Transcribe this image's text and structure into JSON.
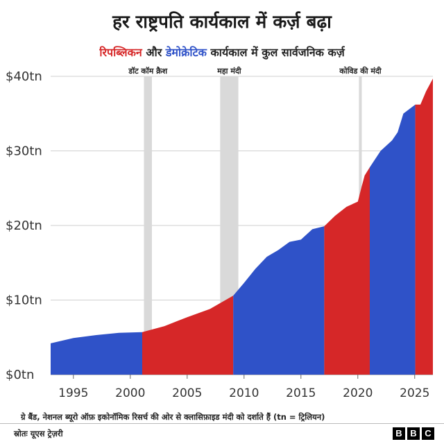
{
  "header": {
    "title": "हर राष्ट्रपति कार्यकाल में कर्ज़ बढ़ा",
    "subtitle_rep": "रिपब्लिकन",
    "subtitle_and": " और ",
    "subtitle_dem": "डेमोक्रेटिक",
    "subtitle_rest": " कार्यकाल में कुल सार्वजनिक कर्ज़"
  },
  "footer": {
    "note": "ग्रे बैंड, नेशनल ब्यूरो ऑफ़ इकोनॉमिक रिसर्च की ओर से क्लासिफ़ाइड मंदी को दर्शाते हैं (tn = ट्रिलियन)",
    "source": "स्रोतः यूएस ट्रेज़री",
    "brand": [
      "B",
      "B",
      "C"
    ]
  },
  "colors": {
    "republican": "#d62728",
    "democratic": "#2f52c8",
    "recession": "#d9d9d9"
  },
  "chart_data": {
    "type": "area",
    "title": "हर राष्ट्रपति कार्यकाल में कर्ज़ बढ़ा",
    "subtitle": "रिपब्लिकन और डेमोक्रेटिक कार्यकाल में कुल सार्वजनिक कर्ज़",
    "xlim": [
      1993,
      2026.6
    ],
    "ylim": [
      0,
      40
    ],
    "x_ticks": [
      1995,
      2000,
      2005,
      2010,
      2015,
      2020,
      2025
    ],
    "y_ticks": [
      0,
      10,
      20,
      30,
      40
    ],
    "y_tick_labels": [
      "$0tn",
      "$10tn",
      "$20tn",
      "$30tn",
      "$40tn"
    ],
    "grid": "horizontal",
    "series": [
      {
        "party": "democratic",
        "x": [
          1993,
          1995,
          1997,
          1999,
          2001.05
        ],
        "y": [
          4.2,
          4.9,
          5.3,
          5.6,
          5.7
        ]
      },
      {
        "party": "republican",
        "x": [
          2001.05,
          2003,
          2005,
          2007,
          2009.05
        ],
        "y": [
          5.7,
          6.5,
          7.7,
          8.8,
          10.6
        ]
      },
      {
        "party": "democratic",
        "x": [
          2009.05,
          2010,
          2011,
          2012,
          2013,
          2014,
          2015,
          2016,
          2017.05
        ],
        "y": [
          10.6,
          12.3,
          14.2,
          15.8,
          16.7,
          17.8,
          18.1,
          19.5,
          19.9
        ]
      },
      {
        "party": "republican",
        "x": [
          2017.05,
          2018,
          2019,
          2020,
          2020.3,
          2020.6,
          2021.05
        ],
        "y": [
          19.9,
          21.3,
          22.5,
          23.2,
          25.0,
          26.7,
          27.8
        ]
      },
      {
        "party": "democratic",
        "x": [
          2021.05,
          2022,
          2023,
          2023.5,
          2024,
          2025.05
        ],
        "y": [
          27.8,
          30.0,
          31.4,
          32.5,
          35.0,
          36.2
        ]
      },
      {
        "party": "republican",
        "x": [
          2025.05,
          2025.5,
          2026,
          2026.6
        ],
        "y": [
          36.2,
          36.2,
          38.0,
          39.7
        ]
      }
    ],
    "recessions": [
      {
        "label": "डॉट कॉम क्रैश",
        "start": 2001.2,
        "end": 2001.9
      },
      {
        "label": "महा मंदी",
        "start": 2007.9,
        "end": 2009.5
      },
      {
        "label": "कोविड की मंदी",
        "start": 2020.1,
        "end": 2020.35
      }
    ]
  }
}
